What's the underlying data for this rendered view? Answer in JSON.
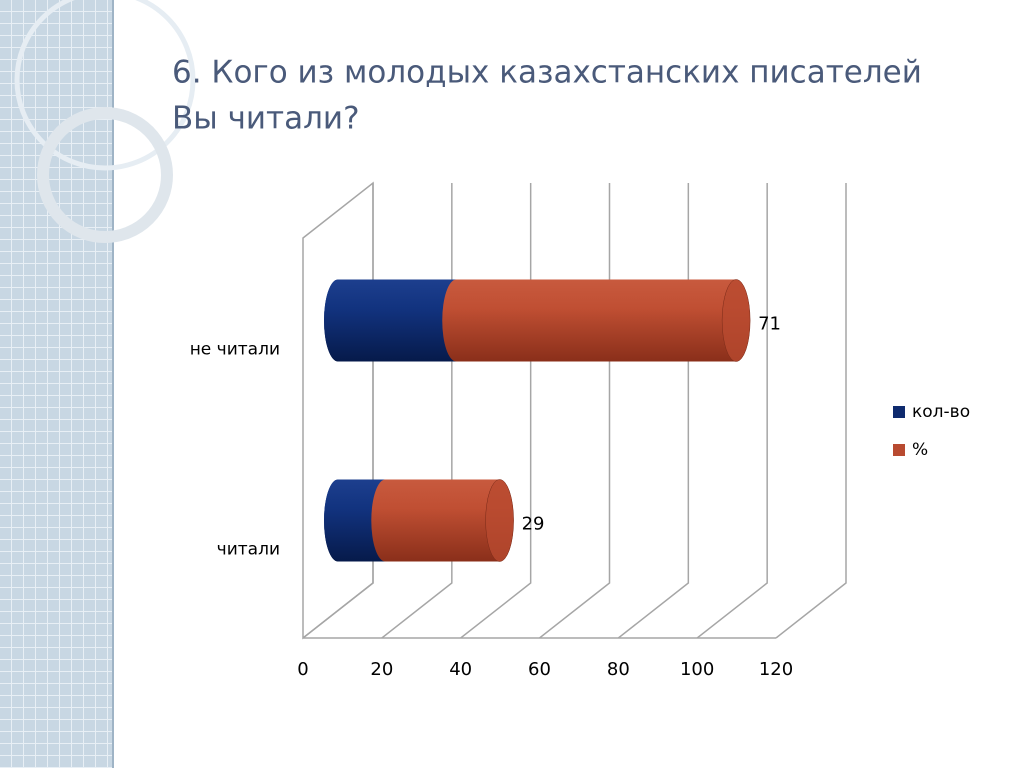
{
  "chart_data": {
    "type": "bar3d_stacked_horizontal",
    "title": [
      "6. Кого из молодых казахстанских писателей",
      "Вы читали?"
    ],
    "categories": [
      "не читали",
      "читали"
    ],
    "series": [
      {
        "name": "кол-во",
        "color": "#0e2a6e",
        "values": [
          30,
          12
        ]
      },
      {
        "name": "%",
        "color": "#b84a30",
        "values": [
          71,
          29
        ],
        "show_values": true
      }
    ],
    "xlim": [
      0,
      120
    ],
    "xticks": [
      0,
      20,
      40,
      60,
      80,
      100,
      120
    ],
    "grid": true,
    "legend": "right"
  }
}
